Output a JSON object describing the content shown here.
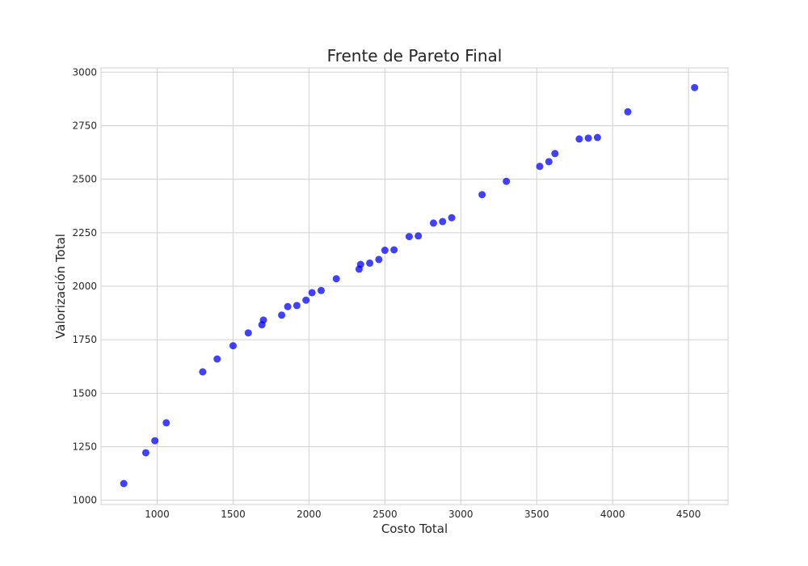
{
  "chart_data": {
    "type": "scatter",
    "title": "Frente de Pareto Final",
    "xlabel": "Costo Total",
    "ylabel": "Valorización Total",
    "xlim": [
      630,
      4760
    ],
    "ylim": [
      980,
      3020
    ],
    "xticks": [
      1000,
      1500,
      2000,
      2500,
      3000,
      3500,
      4000,
      4500
    ],
    "yticks": [
      1000,
      1250,
      1500,
      1750,
      2000,
      2250,
      2500,
      2750,
      3000
    ],
    "grid": true,
    "marker_color": "#0000ff",
    "points": [
      {
        "x": 780,
        "y": 1078
      },
      {
        "x": 925,
        "y": 1222
      },
      {
        "x": 985,
        "y": 1278
      },
      {
        "x": 1060,
        "y": 1362
      },
      {
        "x": 1300,
        "y": 1600
      },
      {
        "x": 1395,
        "y": 1660
      },
      {
        "x": 1500,
        "y": 1722
      },
      {
        "x": 1600,
        "y": 1782
      },
      {
        "x": 1690,
        "y": 1820
      },
      {
        "x": 1700,
        "y": 1842
      },
      {
        "x": 1820,
        "y": 1865
      },
      {
        "x": 1860,
        "y": 1905
      },
      {
        "x": 1920,
        "y": 1910
      },
      {
        "x": 1980,
        "y": 1935
      },
      {
        "x": 2020,
        "y": 1970
      },
      {
        "x": 2080,
        "y": 1980
      },
      {
        "x": 2180,
        "y": 2035
      },
      {
        "x": 2330,
        "y": 2080
      },
      {
        "x": 2340,
        "y": 2102
      },
      {
        "x": 2400,
        "y": 2108
      },
      {
        "x": 2460,
        "y": 2125
      },
      {
        "x": 2500,
        "y": 2168
      },
      {
        "x": 2560,
        "y": 2170
      },
      {
        "x": 2660,
        "y": 2232
      },
      {
        "x": 2720,
        "y": 2235
      },
      {
        "x": 2820,
        "y": 2295
      },
      {
        "x": 2880,
        "y": 2302
      },
      {
        "x": 2940,
        "y": 2320
      },
      {
        "x": 3140,
        "y": 2428
      },
      {
        "x": 3300,
        "y": 2490
      },
      {
        "x": 3520,
        "y": 2560
      },
      {
        "x": 3580,
        "y": 2582
      },
      {
        "x": 3620,
        "y": 2620
      },
      {
        "x": 3780,
        "y": 2688
      },
      {
        "x": 3840,
        "y": 2692
      },
      {
        "x": 3900,
        "y": 2695
      },
      {
        "x": 4100,
        "y": 2815
      },
      {
        "x": 4540,
        "y": 2928
      }
    ]
  }
}
